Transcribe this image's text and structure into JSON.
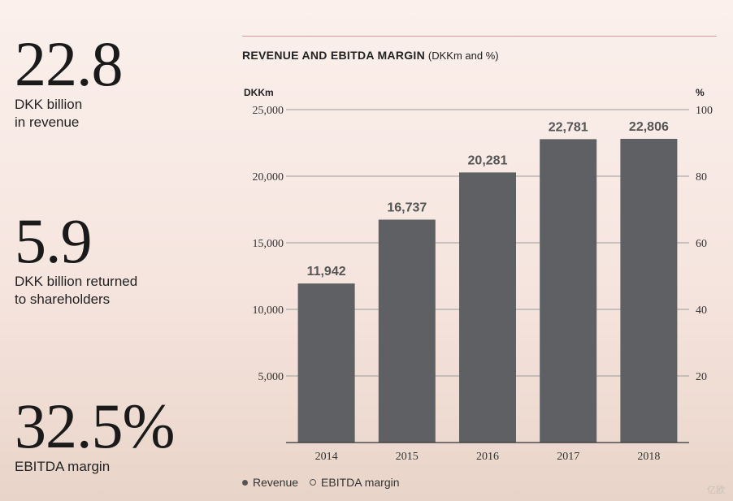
{
  "kpis": [
    {
      "value": "22.8",
      "label": "DKK billion\nin revenue"
    },
    {
      "value": "5.9",
      "label": "DKK billion returned\nto shareholders"
    },
    {
      "value": "32.5%",
      "label": "EBITDA margin"
    }
  ],
  "chart_data": {
    "type": "bar",
    "title": "REVENUE AND EBITDA MARGIN",
    "title_units": "(DKKm and %)",
    "categories": [
      "2014",
      "2015",
      "2016",
      "2017",
      "2018"
    ],
    "series": [
      {
        "name": "Revenue",
        "values": [
          11942,
          16737,
          20281,
          22781,
          22806
        ]
      }
    ],
    "value_labels": [
      "11,942",
      "16,737",
      "20,281",
      "22,781",
      "22,806"
    ],
    "ylabel": "DKKm",
    "ylim": [
      0,
      25000
    ],
    "y_ticks": [
      5000,
      10000,
      15000,
      20000,
      25000
    ],
    "y_tick_labels": [
      "5,000",
      "10,000",
      "15,000",
      "20,000",
      "25,000"
    ],
    "y2label": "%",
    "y2lim": [
      0,
      100
    ],
    "y2_ticks": [
      20,
      40,
      60,
      80,
      100
    ],
    "y2_tick_labels": [
      "20",
      "40",
      "60",
      "80",
      "100"
    ],
    "legend": [
      {
        "label": "Revenue",
        "marker": "filled"
      },
      {
        "label": "EBITDA margin",
        "marker": "open"
      }
    ],
    "grid": true,
    "colors": {
      "bar": "#5f6063",
      "grid": "#9b9b9b",
      "axis": "#333333"
    }
  },
  "watermark": "亿欧"
}
